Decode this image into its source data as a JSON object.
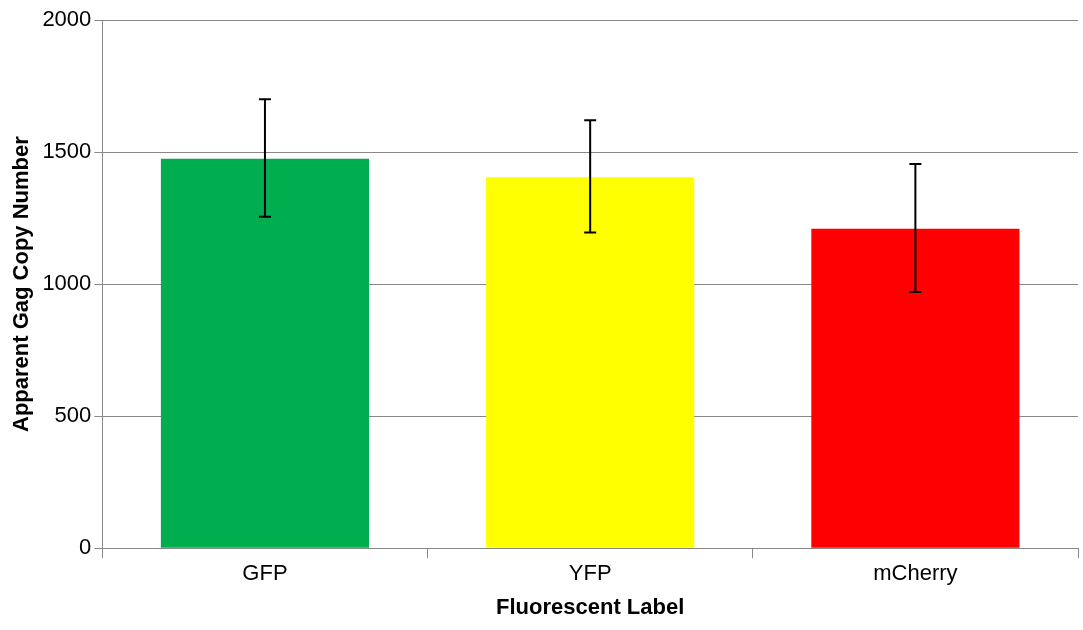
{
  "chart_data": {
    "type": "bar",
    "xlabel": "Fluorescent Label",
    "ylabel": "Apparent Gag Copy Number",
    "categories": [
      "GFP",
      "YFP",
      "mCherry"
    ],
    "values": [
      1475,
      1405,
      1210
    ],
    "colors": [
      "#00ad4f",
      "#ffff00",
      "#ff0000"
    ],
    "errors": [
      [
        1255,
        1700
      ],
      [
        1195,
        1620
      ],
      [
        970,
        1455
      ]
    ],
    "ylim": [
      0,
      2000
    ],
    "yticks": [
      0,
      500,
      1000,
      1500,
      2000
    ],
    "grid": "y",
    "legend": false
  }
}
